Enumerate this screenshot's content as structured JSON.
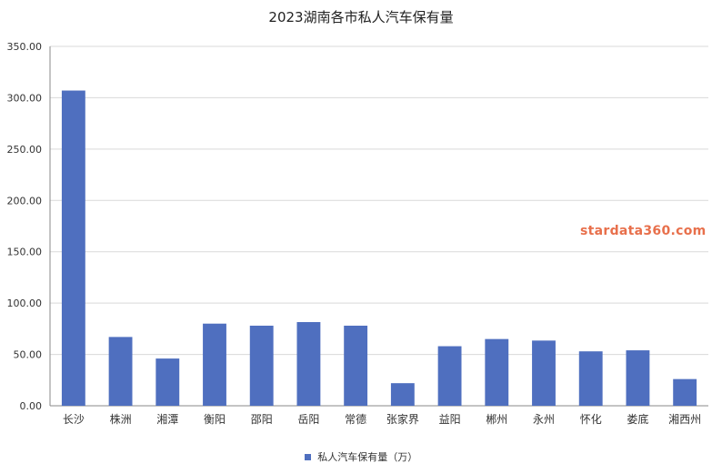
{
  "chart_data": {
    "type": "bar",
    "title": "2023湖南各市私人汽车保有量",
    "categories": [
      "长沙",
      "株洲",
      "湘潭",
      "衡阳",
      "邵阳",
      "岳阳",
      "常德",
      "张家界",
      "益阳",
      "郴州",
      "永州",
      "怀化",
      "娄底",
      "湘西州"
    ],
    "series": [
      {
        "name": "私人汽车保有量（万）",
        "values": [
          307,
          67,
          46,
          80,
          78,
          81.5,
          78,
          22,
          58,
          65,
          63.5,
          53,
          54,
          26
        ]
      }
    ],
    "y_ticks": [
      "0.00",
      "50.00",
      "100.00",
      "150.00",
      "200.00",
      "250.00",
      "300.00",
      "350.00"
    ],
    "ylim": [
      0,
      350
    ],
    "grid": true,
    "legend_position": "bottom"
  },
  "watermark": "stardata360.com",
  "colors": {
    "bar": "#4f6fbf",
    "grid": "#d9d9d9",
    "axis": "#888888",
    "watermark": "#e8704c"
  }
}
